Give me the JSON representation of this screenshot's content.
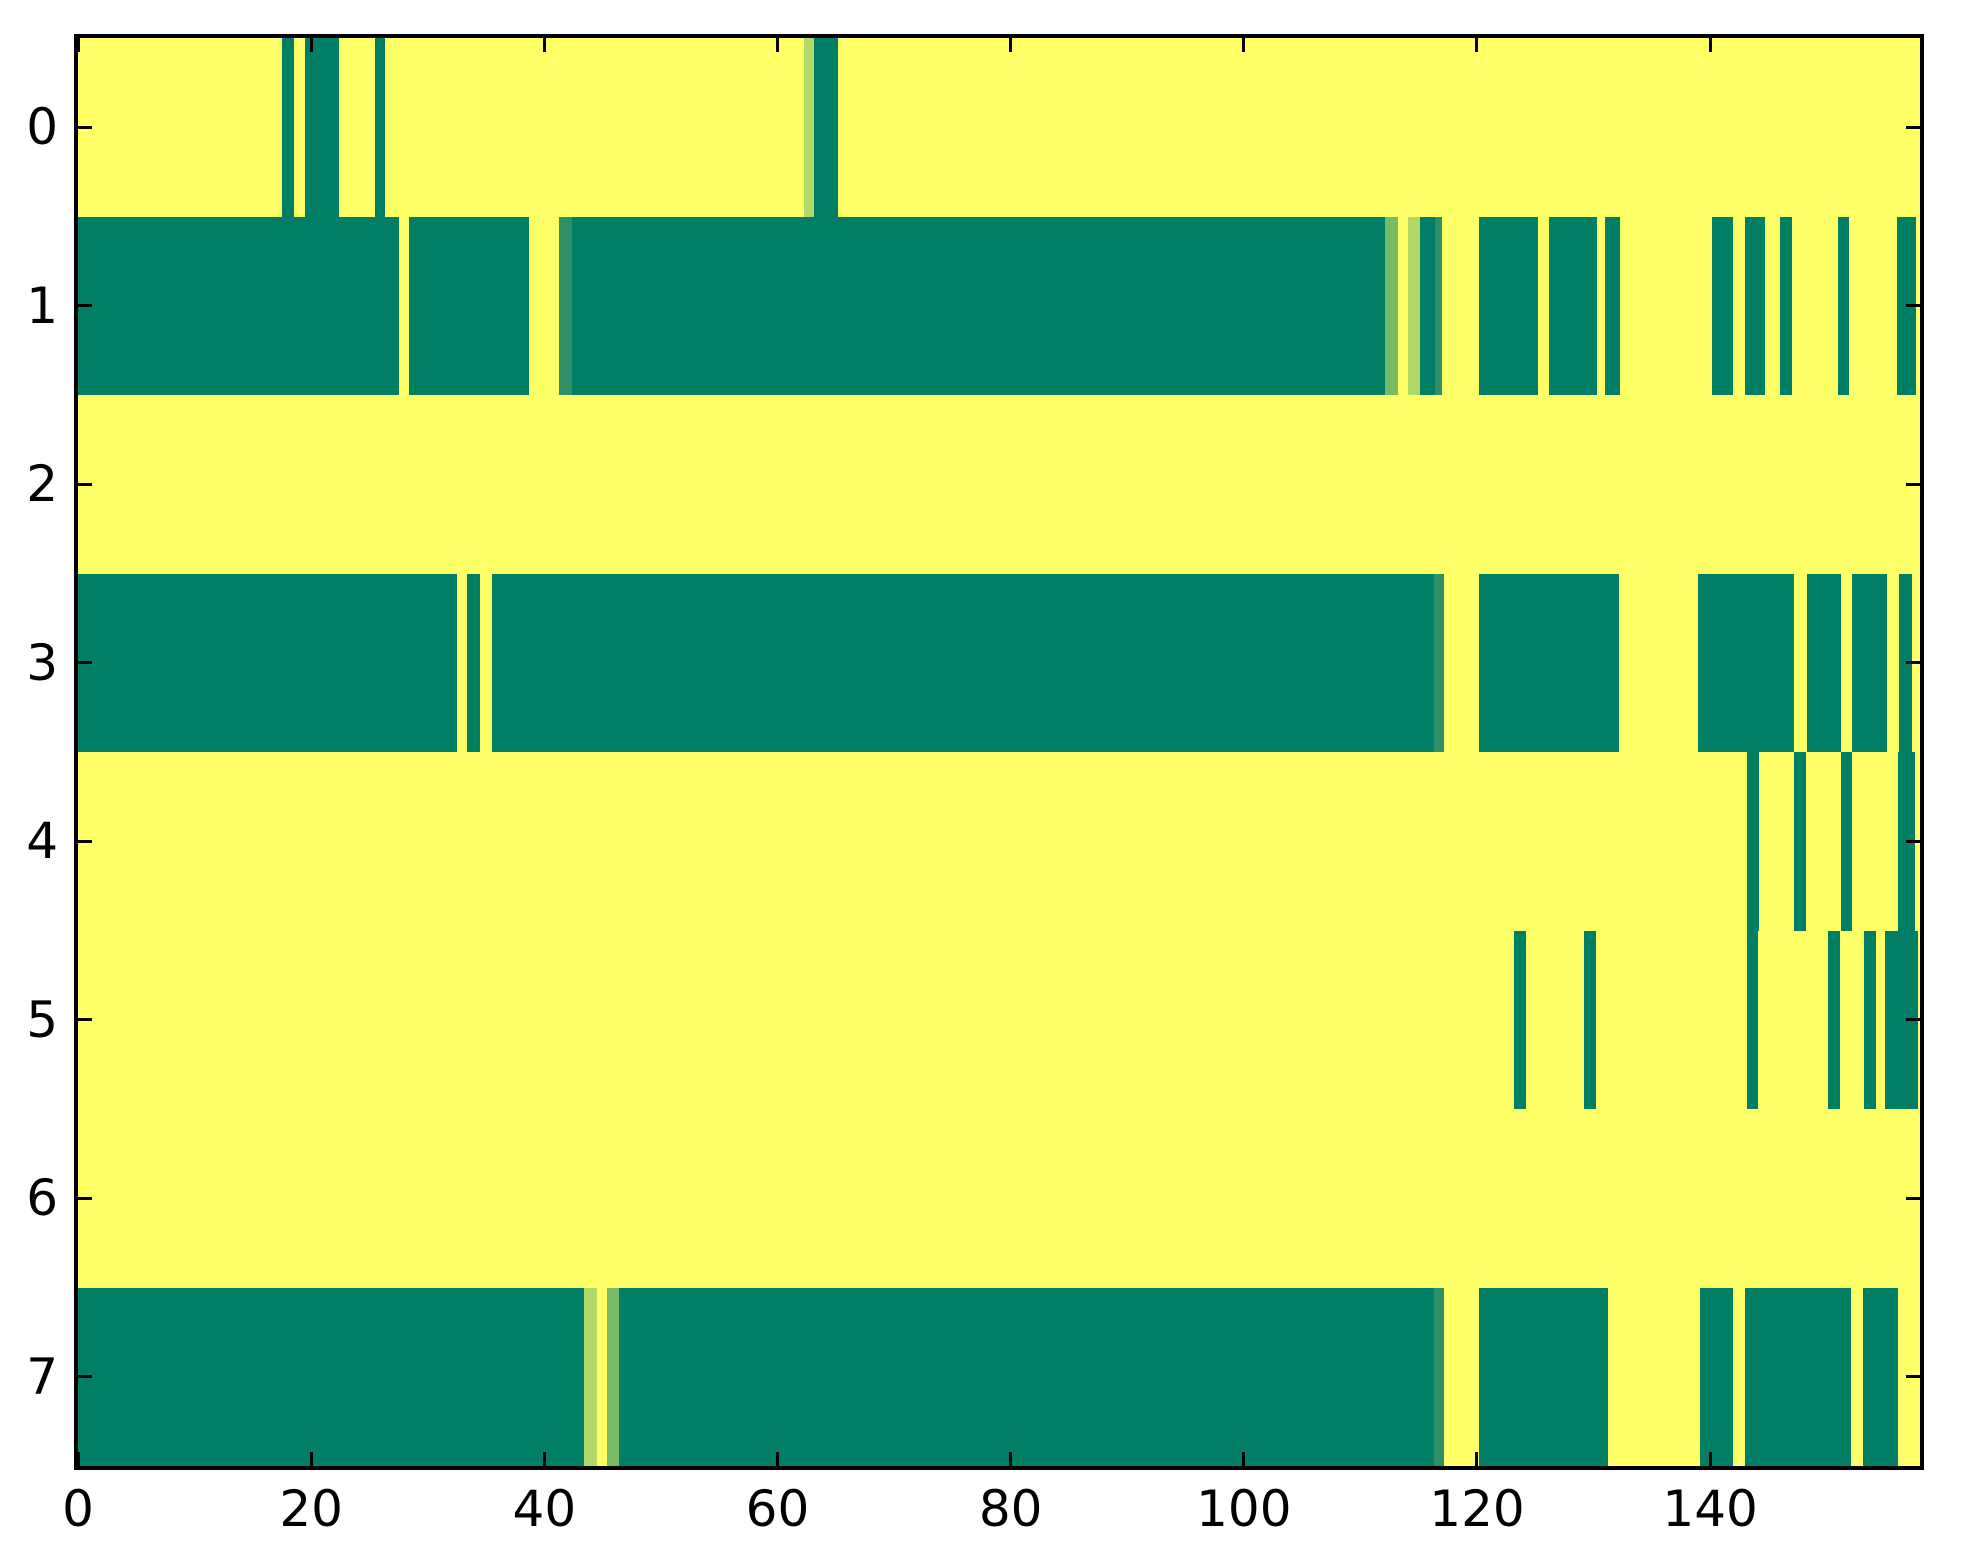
{
  "figure": {
    "background": "#ffffff",
    "axes_edge_color": "#000000",
    "tick_color": "#000000",
    "label_color": "#000000"
  },
  "chart_data": {
    "type": "heatmap",
    "title": "",
    "xlabel": "",
    "ylabel": "",
    "colormap": "summer",
    "grid": false,
    "x_range": [
      0,
      158
    ],
    "n_rows": 8,
    "x_ticks": [
      0,
      20,
      40,
      60,
      80,
      100,
      120,
      140
    ],
    "x_tick_labels": [
      "0",
      "20",
      "40",
      "60",
      "80",
      "100",
      "120",
      "140"
    ],
    "y_tick_labels": [
      "0",
      "1",
      "2",
      "3",
      "4",
      "5",
      "6",
      "7"
    ],
    "palette": {
      "bg": "#FFFF66",
      "g0": "#007F66",
      "g1": "#2E9066",
      "g2": "#78BB66",
      "g3": "#B2D966"
    },
    "palette_legend": {
      "bg": "value 1.0 (yellow)",
      "g0": "value 0.0 (dark teal)",
      "g1": "value ~0.2 (medium teal)",
      "g2": "value ~0.45 (medium green)",
      "g3": "value ~0.7 (light yellow-green)"
    },
    "rows": [
      {
        "label": "0",
        "segments": [
          {
            "start": 17.5,
            "end": 18.5,
            "color": "g0"
          },
          {
            "start": 19.5,
            "end": 22.4,
            "color": "g0"
          },
          {
            "start": 25.5,
            "end": 26.3,
            "color": "g0"
          },
          {
            "start": 62.3,
            "end": 63.1,
            "color": "g3"
          },
          {
            "start": 63.1,
            "end": 65.2,
            "color": "g0"
          }
        ]
      },
      {
        "label": "1",
        "segments": [
          {
            "start": 0.0,
            "end": 27.5,
            "color": "g0"
          },
          {
            "start": 28.4,
            "end": 38.7,
            "color": "g0"
          },
          {
            "start": 41.3,
            "end": 42.4,
            "color": "g1"
          },
          {
            "start": 42.4,
            "end": 112.1,
            "color": "g0"
          },
          {
            "start": 112.1,
            "end": 113.2,
            "color": "g2"
          },
          {
            "start": 114.1,
            "end": 115.1,
            "color": "g3"
          },
          {
            "start": 115.1,
            "end": 116.4,
            "color": "g0"
          },
          {
            "start": 116.4,
            "end": 117.0,
            "color": "g1"
          },
          {
            "start": 120.2,
            "end": 125.2,
            "color": "g0"
          },
          {
            "start": 126.2,
            "end": 130.3,
            "color": "g0"
          },
          {
            "start": 131.0,
            "end": 132.3,
            "color": "g0"
          },
          {
            "start": 140.2,
            "end": 142.0,
            "color": "g0"
          },
          {
            "start": 143.0,
            "end": 144.7,
            "color": "g0"
          },
          {
            "start": 146.0,
            "end": 147.0,
            "color": "g0"
          },
          {
            "start": 151.0,
            "end": 151.9,
            "color": "g0"
          },
          {
            "start": 156.0,
            "end": 157.7,
            "color": "g0"
          }
        ]
      },
      {
        "label": "2",
        "segments": []
      },
      {
        "label": "3",
        "segments": [
          {
            "start": 0.0,
            "end": 32.5,
            "color": "g0"
          },
          {
            "start": 33.4,
            "end": 34.5,
            "color": "g0"
          },
          {
            "start": 35.5,
            "end": 116.3,
            "color": "g0"
          },
          {
            "start": 116.3,
            "end": 117.2,
            "color": "g1"
          },
          {
            "start": 120.2,
            "end": 132.2,
            "color": "g0"
          },
          {
            "start": 139.0,
            "end": 147.2,
            "color": "g0"
          },
          {
            "start": 148.3,
            "end": 151.2,
            "color": "g0"
          },
          {
            "start": 152.2,
            "end": 155.2,
            "color": "g0"
          },
          {
            "start": 156.2,
            "end": 157.3,
            "color": "g0"
          }
        ]
      },
      {
        "label": "4",
        "segments": [
          {
            "start": 143.2,
            "end": 144.2,
            "color": "g0"
          },
          {
            "start": 147.2,
            "end": 148.2,
            "color": "g0"
          },
          {
            "start": 151.2,
            "end": 152.2,
            "color": "g0"
          },
          {
            "start": 156.1,
            "end": 157.6,
            "color": "g0"
          }
        ]
      },
      {
        "label": "5",
        "segments": [
          {
            "start": 123.2,
            "end": 124.2,
            "color": "g0"
          },
          {
            "start": 129.2,
            "end": 130.2,
            "color": "g0"
          },
          {
            "start": 143.2,
            "end": 144.1,
            "color": "g0"
          },
          {
            "start": 150.1,
            "end": 151.1,
            "color": "g0"
          },
          {
            "start": 153.2,
            "end": 154.2,
            "color": "g0"
          },
          {
            "start": 155.0,
            "end": 157.8,
            "color": "g0"
          }
        ]
      },
      {
        "label": "6",
        "segments": []
      },
      {
        "label": "7",
        "segments": [
          {
            "start": 0.0,
            "end": 43.4,
            "color": "g0"
          },
          {
            "start": 43.4,
            "end": 44.5,
            "color": "g3"
          },
          {
            "start": 45.4,
            "end": 46.4,
            "color": "g2"
          },
          {
            "start": 46.4,
            "end": 116.3,
            "color": "g0"
          },
          {
            "start": 116.3,
            "end": 117.2,
            "color": "g1"
          },
          {
            "start": 120.2,
            "end": 131.2,
            "color": "g0"
          },
          {
            "start": 139.1,
            "end": 142.0,
            "color": "g0"
          },
          {
            "start": 143.0,
            "end": 152.1,
            "color": "g0"
          },
          {
            "start": 153.1,
            "end": 156.1,
            "color": "g0"
          }
        ]
      }
    ]
  }
}
